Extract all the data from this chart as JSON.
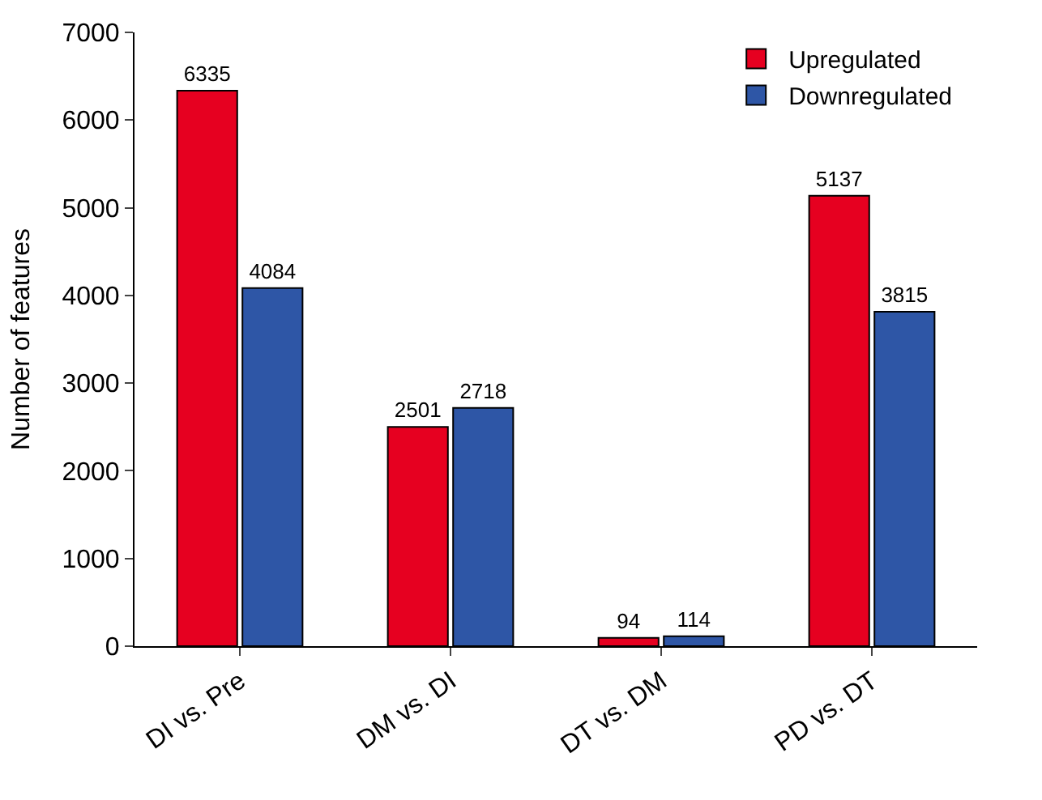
{
  "chart_data": {
    "type": "bar",
    "ylabel": "Number of features",
    "categories": [
      "DI vs. Pre",
      "DM vs. DI",
      "DT vs. DM",
      "PD vs. DT"
    ],
    "series": [
      {
        "name": "Upregulated",
        "color": "#e60020",
        "values": [
          6335,
          2501,
          94,
          5137
        ]
      },
      {
        "name": "Downregulated",
        "color": "#2e56a6",
        "values": [
          4084,
          2718,
          114,
          3815
        ]
      }
    ],
    "ylim": [
      0,
      7000
    ],
    "yticks": [
      0,
      1000,
      2000,
      3000,
      4000,
      5000,
      6000,
      7000
    ],
    "data_labels": true,
    "legend": "top right"
  }
}
